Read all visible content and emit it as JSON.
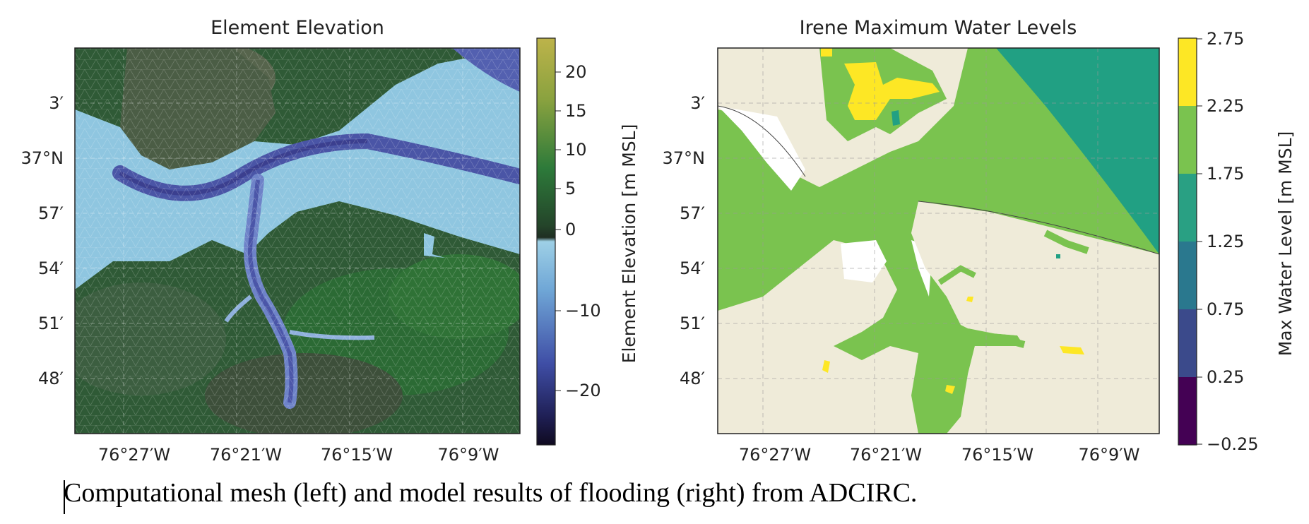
{
  "panels": {
    "left": {
      "title": "Element Elevation",
      "colorbar_label": "Element Elevation [m MSL]",
      "colorbar_ticks": [
        "20",
        "15",
        "10",
        "5",
        "0",
        "−10",
        "−20"
      ]
    },
    "right": {
      "title": "Irene Maximum Water Levels",
      "colorbar_label": "Max Water Level [m MSL]",
      "colorbar_ticks": [
        "2.75",
        "2.25",
        "1.75",
        "1.25",
        "0.75",
        "0.25",
        "−0.25"
      ]
    },
    "lat_ticks": [
      "3′",
      "37°N",
      "57′",
      "54′",
      "51′",
      "48′"
    ],
    "lon_ticks": [
      "76°27′W",
      "76°21′W",
      "76°15′W",
      "76°9′W"
    ]
  },
  "caption": "Computational mesh (left) and model results of flooding (right) from ADCIRC.",
  "colors": {
    "land_dark": "#3f5a3a",
    "land_green": "#2f6a35",
    "water_light": "#8fc6e0",
    "water_deep": "#4b56a8",
    "background_land": "#efebd9",
    "viridis": [
      "#440154",
      "#3b528b",
      "#21918c",
      "#2a788e",
      "#5ec962",
      "#7ac34f",
      "#fde725"
    ]
  }
}
